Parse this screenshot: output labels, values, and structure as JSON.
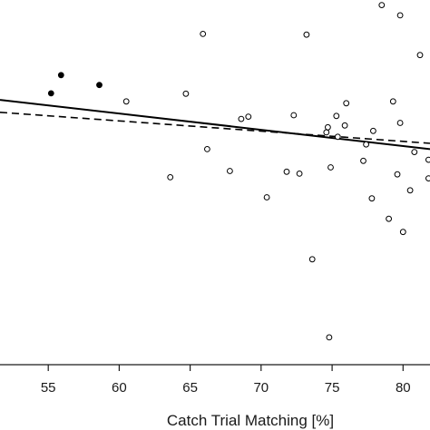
{
  "chart_data": {
    "type": "scatter",
    "title": "",
    "xlabel": "Catch Trial Matching [%]",
    "ylabel": "",
    "xlim": [
      51.6,
      81.9
    ],
    "ylim": [
      0,
      1
    ],
    "x_ticks": [
      55,
      60,
      65,
      70,
      75,
      80
    ],
    "x_tick_labels": [
      "55",
      "60",
      "65",
      "70",
      "75",
      "80"
    ],
    "grid": false,
    "legend": "none",
    "series": [
      {
        "marker": "filled-circle",
        "color": "#000000",
        "points": [
          {
            "x": 55.2,
            "y": 0.744
          },
          {
            "x": 55.9,
            "y": 0.794
          },
          {
            "x": 58.6,
            "y": 0.767
          }
        ]
      },
      {
        "marker": "open-circle",
        "color": "#000000",
        "points": [
          {
            "x": 60.5,
            "y": 0.722
          },
          {
            "x": 63.6,
            "y": 0.514
          },
          {
            "x": 64.7,
            "y": 0.743
          },
          {
            "x": 65.9,
            "y": 0.907
          },
          {
            "x": 66.2,
            "y": 0.591
          },
          {
            "x": 67.8,
            "y": 0.531
          },
          {
            "x": 68.6,
            "y": 0.674
          },
          {
            "x": 69.1,
            "y": 0.68
          },
          {
            "x": 70.4,
            "y": 0.459
          },
          {
            "x": 71.8,
            "y": 0.529
          },
          {
            "x": 72.3,
            "y": 0.684
          },
          {
            "x": 72.7,
            "y": 0.524
          },
          {
            "x": 73.2,
            "y": 0.905
          },
          {
            "x": 73.6,
            "y": 0.289
          },
          {
            "x": 74.6,
            "y": 0.637
          },
          {
            "x": 74.7,
            "y": 0.651
          },
          {
            "x": 74.8,
            "y": 0.075
          },
          {
            "x": 74.9,
            "y": 0.541
          },
          {
            "x": 75.3,
            "y": 0.682
          },
          {
            "x": 75.4,
            "y": 0.625
          },
          {
            "x": 75.9,
            "y": 0.656
          },
          {
            "x": 76.0,
            "y": 0.717
          },
          {
            "x": 77.2,
            "y": 0.559
          },
          {
            "x": 77.4,
            "y": 0.604
          },
          {
            "x": 77.8,
            "y": 0.456
          },
          {
            "x": 77.9,
            "y": 0.641
          },
          {
            "x": 78.5,
            "y": 0.986
          },
          {
            "x": 79.0,
            "y": 0.4
          },
          {
            "x": 79.3,
            "y": 0.722
          },
          {
            "x": 79.6,
            "y": 0.522
          },
          {
            "x": 79.8,
            "y": 0.958
          },
          {
            "x": 79.8,
            "y": 0.663
          },
          {
            "x": 80.0,
            "y": 0.364
          },
          {
            "x": 80.5,
            "y": 0.478
          },
          {
            "x": 80.8,
            "y": 0.583
          },
          {
            "x": 81.2,
            "y": 0.849
          },
          {
            "x": 81.8,
            "y": 0.562
          },
          {
            "x": 81.8,
            "y": 0.511
          }
        ]
      }
    ],
    "lines": [
      {
        "style": "solid",
        "color": "#000000",
        "x": [
          51.6,
          81.9
        ],
        "y": [
          0.726,
          0.591
        ]
      },
      {
        "style": "dashed",
        "color": "#000000",
        "x": [
          51.6,
          81.9
        ],
        "y": [
          0.692,
          0.607
        ]
      }
    ]
  }
}
